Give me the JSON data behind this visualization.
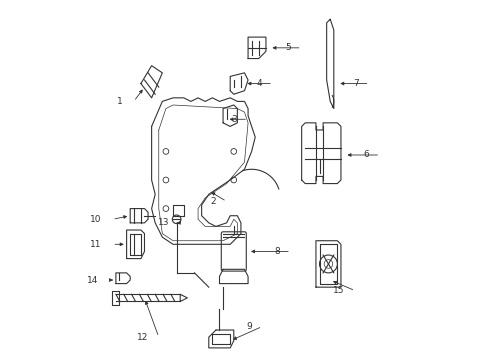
{
  "bg_color": "#ffffff",
  "line_color": "#333333",
  "fig_width": 4.89,
  "fig_height": 3.6,
  "dpi": 100,
  "default_lw": 0.8
}
